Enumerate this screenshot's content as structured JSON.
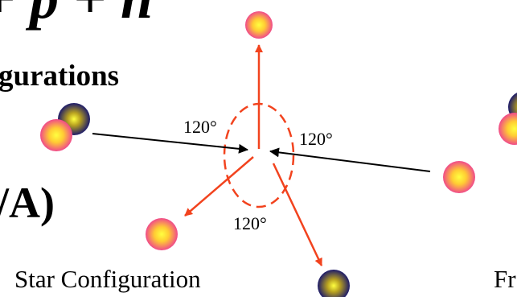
{
  "header": {
    "formula": "+ p + n",
    "subtitle": "gurations",
    "fragment": "/A)"
  },
  "diagram": {
    "angles": [
      "120°",
      "120°",
      "120°"
    ],
    "caption": "Star Configuration",
    "next_caption": "Fr"
  }
}
